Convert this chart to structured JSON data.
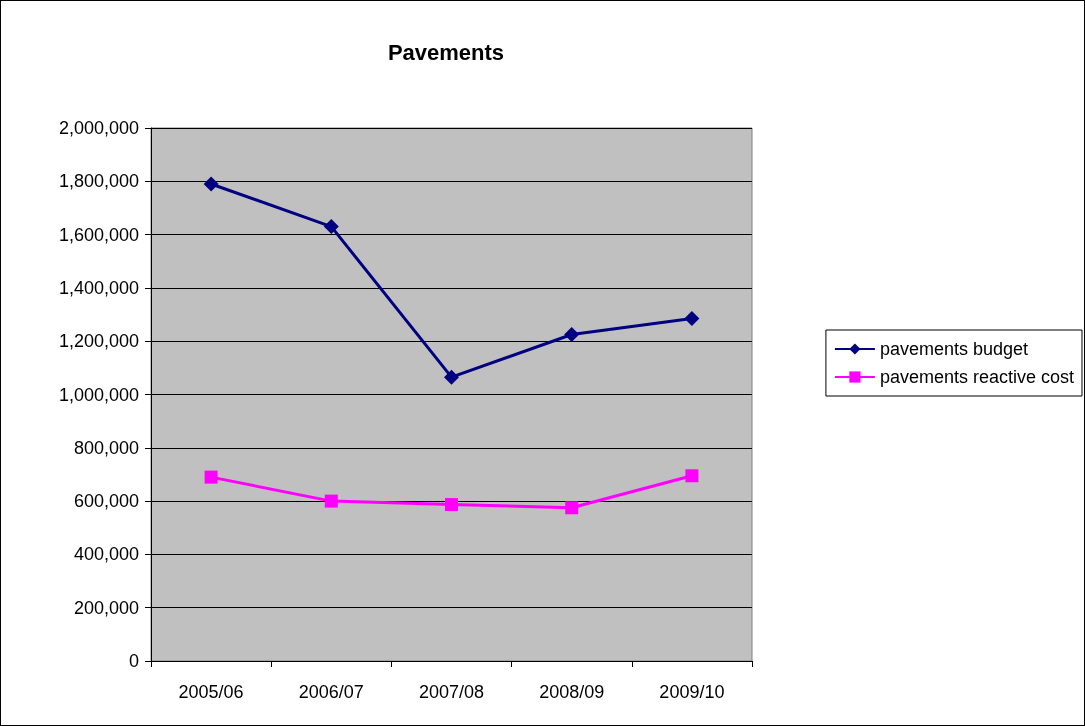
{
  "chart_data": {
    "type": "line",
    "title": "Pavements",
    "categories": [
      "2005/06",
      "2006/07",
      "2007/08",
      "2008/09",
      "2009/10"
    ],
    "series": [
      {
        "name": "pavements budget",
        "color": "#000080",
        "marker": "diamond",
        "values": [
          1790000,
          1630000,
          1065000,
          1225000,
          1285000
        ]
      },
      {
        "name": "pavements reactive cost",
        "color": "#ff00ff",
        "marker": "square",
        "values": [
          690000,
          600000,
          587000,
          575000,
          695000
        ]
      }
    ],
    "ylim": [
      0,
      2000000
    ],
    "yticks": [
      0,
      {
        "value": 200000,
        "label": "200,000"
      },
      {
        "value": 400000,
        "label": "400,000"
      },
      {
        "value": 600000,
        "label": "600,000"
      },
      {
        "value": 800000,
        "label": "800,000"
      },
      {
        "value": 1000000,
        "label": "1,000,000"
      },
      {
        "value": 1200000,
        "label": "1,200,000"
      },
      {
        "value": 1400000,
        "label": "1,400,000"
      },
      {
        "value": 1600000,
        "label": "1,600,000"
      },
      {
        "value": 1800000,
        "label": "1,800,000"
      },
      {
        "value": 2000000,
        "label": "2,000,000"
      }
    ],
    "grid": "y",
    "legend": "right"
  }
}
